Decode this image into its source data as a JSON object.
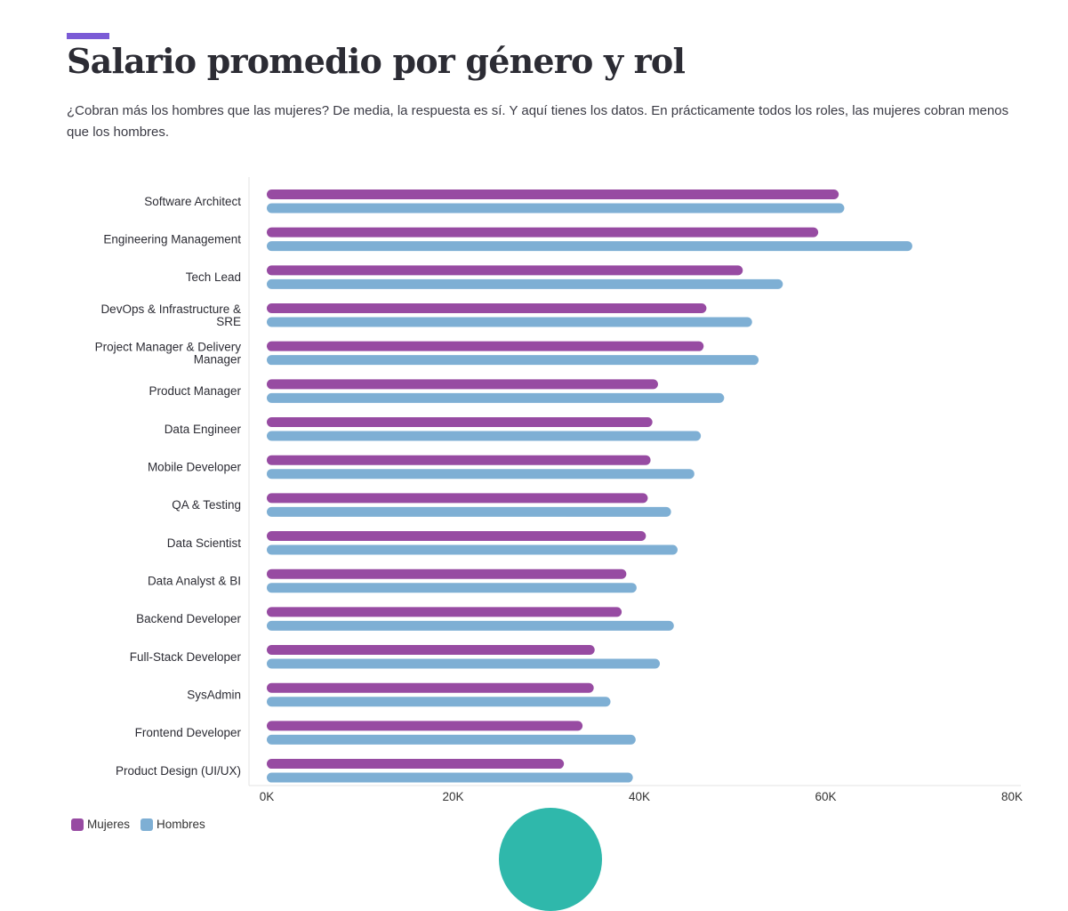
{
  "header": {
    "title": "Salario promedio por género y rol",
    "subtitle": "¿Cobran más los hombres que las mujeres? De media, la respuesta es sí. Y aquí tienes los datos. En prácticamente todos los roles, las mujeres cobran menos que los hombres."
  },
  "colors": {
    "accent": "#7b5bd6",
    "mujeres": "#974ba2",
    "hombres": "#7eafd4",
    "teal": "#2fb8ab",
    "axis": "#e3e3e3"
  },
  "legend": {
    "mujeres_label": "Mujeres",
    "hombres_label": "Hombres"
  },
  "chart_data": {
    "type": "bar",
    "orientation": "horizontal",
    "title": "Salario promedio por género y rol",
    "xlabel": "",
    "ylabel": "",
    "xlim": [
      0,
      80000
    ],
    "xticks": [
      0,
      20000,
      40000,
      60000,
      80000
    ],
    "xtick_labels": [
      "0K",
      "20K",
      "40K",
      "60K",
      "80K"
    ],
    "grid": false,
    "legend_position": "bottom-left",
    "categories": [
      "Software Architect",
      "Engineering Management",
      "Tech Lead",
      "DevOps & Infrastructure & SRE",
      "Project Manager & Delivery Manager",
      "Product Manager",
      "Data Engineer",
      "Mobile Developer",
      "QA & Testing",
      "Data Scientist",
      "Data Analyst & BI",
      "Backend Developer",
      "Full-Stack Developer",
      "SysAdmin",
      "Frontend Developer",
      "Product Design (UI/UX)"
    ],
    "category_lines": [
      [
        "Software Architect"
      ],
      [
        "Engineering Management"
      ],
      [
        "Tech Lead"
      ],
      [
        "DevOps & Infrastructure &",
        "SRE"
      ],
      [
        "Project Manager & Delivery",
        "Manager"
      ],
      [
        "Product Manager"
      ],
      [
        "Data Engineer"
      ],
      [
        "Mobile Developer"
      ],
      [
        "QA & Testing"
      ],
      [
        "Data Scientist"
      ],
      [
        "Data Analyst & BI"
      ],
      [
        "Backend Developer"
      ],
      [
        "Full-Stack Developer"
      ],
      [
        "SysAdmin"
      ],
      [
        "Frontend Developer"
      ],
      [
        "Product Design (UI/UX)"
      ]
    ],
    "series": [
      {
        "name": "Mujeres",
        "values": [
          61400,
          59200,
          51100,
          47200,
          46900,
          42000,
          41400,
          41200,
          40900,
          40700,
          38600,
          38100,
          35200,
          35100,
          33900,
          31900
        ]
      },
      {
        "name": "Hombres",
        "values": [
          62000,
          69300,
          55400,
          52100,
          52800,
          49100,
          46600,
          45900,
          43400,
          44100,
          39700,
          43700,
          42200,
          36900,
          39600,
          39300
        ]
      }
    ]
  }
}
